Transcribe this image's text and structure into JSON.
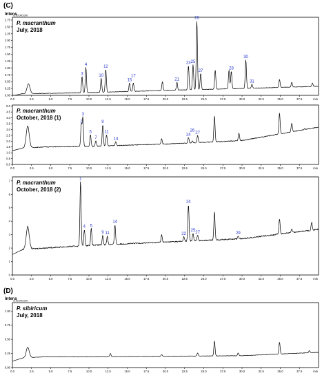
{
  "sections": [
    {
      "label": "(C)",
      "axis_title": "Intens"
    },
    {
      "label": "(D)",
      "axis_title": "Intens"
    }
  ],
  "chart_data": [
    {
      "type": "line",
      "section": "(C)",
      "species": "P. macranthum",
      "collection": "July, 2018",
      "scale_note": "x100,000,000",
      "xlim": [
        0,
        40
      ],
      "ylim": [
        0,
        2.85
      ],
      "x_ticks": [
        "0.0",
        "2.5",
        "5.0",
        "7.5",
        "10.0",
        "12.5",
        "15.0",
        "17.5",
        "20.0",
        "22.5",
        "25.0",
        "27.5",
        "30.0",
        "32.5",
        "35.0",
        "37.5",
        "min"
      ],
      "y_ticks": [
        "0.00",
        "0.25",
        "0.50",
        "0.75",
        "1.00",
        "1.25",
        "1.50",
        "1.75",
        "2.00",
        "2.25",
        "2.50",
        "2.75"
      ],
      "baseline": {
        "x": [
          0,
          10,
          20,
          30,
          40
        ],
        "y": [
          0.05,
          0.1,
          0.18,
          0.25,
          0.33
        ]
      },
      "peaks": [
        {
          "x": 2.1,
          "y": 0.42,
          "label": ""
        },
        {
          "x": 9.1,
          "y": 0.68,
          "label": "3"
        },
        {
          "x": 9.6,
          "y": 1.02,
          "label": "4"
        },
        {
          "x": 11.6,
          "y": 0.62,
          "label": "10"
        },
        {
          "x": 12.2,
          "y": 0.95,
          "label": "12"
        },
        {
          "x": 15.3,
          "y": 0.45,
          "label": "15"
        },
        {
          "x": 15.8,
          "y": 0.45,
          "label": "17"
        },
        {
          "x": 19.6,
          "y": 0.5,
          "label": ""
        },
        {
          "x": 21.5,
          "y": 0.48,
          "label": "21"
        },
        {
          "x": 23.0,
          "y": 1.08,
          "label": "23"
        },
        {
          "x": 23.6,
          "y": 1.12,
          "label": "25"
        },
        {
          "x": 24.1,
          "y": 2.72,
          "label": "26"
        },
        {
          "x": 24.6,
          "y": 0.8,
          "label": "27"
        },
        {
          "x": 26.5,
          "y": 0.92,
          "label": ""
        },
        {
          "x": 28.6,
          "y": 0.88,
          "label": "28"
        },
        {
          "x": 28.3,
          "y": 0.92,
          "label": ""
        },
        {
          "x": 30.5,
          "y": 1.3,
          "label": "30"
        },
        {
          "x": 31.3,
          "y": 0.4,
          "label": "31"
        },
        {
          "x": 34.9,
          "y": 0.58,
          "label": ""
        },
        {
          "x": 36.5,
          "y": 0.48,
          "label": ""
        },
        {
          "x": 39.2,
          "y": 0.45,
          "label": ""
        }
      ]
    },
    {
      "type": "line",
      "section": "(C)",
      "species": "P. macranthum",
      "collection": "October, 2018 (1)",
      "scale_note": "",
      "xlim": [
        0,
        40
      ],
      "ylim": [
        0,
        5.1
      ],
      "x_ticks": [
        "0.0",
        "2.5",
        "5.0",
        "7.5",
        "10.0",
        "12.5",
        "15.0",
        "17.5",
        "20.0",
        "22.5",
        "25.0",
        "27.5",
        "30.0",
        "32.5",
        "35.0",
        "37.5",
        "min"
      ],
      "y_ticks": [
        "0.0",
        "0.5",
        "1.0",
        "1.5",
        "2.0",
        "2.5",
        "3.0",
        "3.5",
        "4.0",
        "4.5",
        "5.0"
      ],
      "baseline": {
        "x": [
          0,
          1.5,
          4.0,
          10,
          20,
          30,
          40
        ],
        "y": [
          1.3,
          1.4,
          1.5,
          1.55,
          1.75,
          2.05,
          3.2
        ]
      },
      "peaks": [
        {
          "x": 2.0,
          "y": 3.3,
          "label": ""
        },
        {
          "x": 9.0,
          "y": 3.45,
          "label": "1"
        },
        {
          "x": 9.2,
          "y": 4.05,
          "label": "3"
        },
        {
          "x": 10.2,
          "y": 2.55,
          "label": "5"
        },
        {
          "x": 10.9,
          "y": 2.05,
          "label": "7"
        },
        {
          "x": 11.8,
          "y": 3.4,
          "label": "9"
        },
        {
          "x": 12.3,
          "y": 2.55,
          "label": "11"
        },
        {
          "x": 13.5,
          "y": 1.95,
          "label": "14"
        },
        {
          "x": 19.5,
          "y": 2.2,
          "label": ""
        },
        {
          "x": 23.0,
          "y": 2.3,
          "label": "24"
        },
        {
          "x": 23.5,
          "y": 2.0,
          "label": "26"
        },
        {
          "x": 24.2,
          "y": 2.5,
          "label": "27"
        },
        {
          "x": 26.4,
          "y": 4.15,
          "label": ""
        },
        {
          "x": 29.6,
          "y": 2.7,
          "label": ""
        },
        {
          "x": 34.9,
          "y": 4.4,
          "label": ""
        },
        {
          "x": 36.5,
          "y": 3.55,
          "label": ""
        },
        {
          "x": 38.2,
          "y": 3.05,
          "label": ""
        }
      ]
    },
    {
      "type": "line",
      "section": "(C)",
      "species": "P. macranthum",
      "collection": "October, 2018 (2)",
      "scale_note": "",
      "xlim": [
        0,
        40
      ],
      "ylim": [
        0,
        7.3
      ],
      "x_ticks": [
        "0.0",
        "2.5",
        "5.0",
        "7.5",
        "10.0",
        "12.5",
        "15.0",
        "17.5",
        "20.0",
        "22.5",
        "25.0",
        "27.5",
        "30.0",
        "32.5",
        "35.0",
        "37.5",
        "min"
      ],
      "y_ticks": [
        "0",
        "1",
        "2",
        "3",
        "4",
        "5",
        "6",
        "7"
      ],
      "baseline": {
        "x": [
          0,
          1.5,
          4,
          10,
          20,
          30,
          40
        ],
        "y": [
          1.7,
          1.9,
          2.0,
          2.2,
          2.45,
          2.7,
          3.4
        ]
      },
      "peaks": [
        {
          "x": 2.0,
          "y": 3.6,
          "label": ""
        },
        {
          "x": 8.9,
          "y": 6.95,
          "label": "1"
        },
        {
          "x": 9.4,
          "y": 3.4,
          "label": "4"
        },
        {
          "x": 10.3,
          "y": 3.45,
          "label": "5"
        },
        {
          "x": 11.8,
          "y": 2.95,
          "label": "9"
        },
        {
          "x": 12.4,
          "y": 2.9,
          "label": "11"
        },
        {
          "x": 13.4,
          "y": 3.75,
          "label": "14"
        },
        {
          "x": 19.5,
          "y": 3.0,
          "label": ""
        },
        {
          "x": 22.4,
          "y": 2.85,
          "label": "22"
        },
        {
          "x": 23.0,
          "y": 5.25,
          "label": "24"
        },
        {
          "x": 23.6,
          "y": 3.1,
          "label": "25"
        },
        {
          "x": 24.2,
          "y": 2.95,
          "label": "27"
        },
        {
          "x": 26.4,
          "y": 4.65,
          "label": ""
        },
        {
          "x": 29.5,
          "y": 2.9,
          "label": "29"
        },
        {
          "x": 34.9,
          "y": 4.2,
          "label": ""
        },
        {
          "x": 36.5,
          "y": 3.4,
          "label": ""
        },
        {
          "x": 39.1,
          "y": 3.9,
          "label": ""
        }
      ]
    },
    {
      "type": "line",
      "section": "(D)",
      "species": "P. sibiricum",
      "collection": "July, 2018",
      "scale_note": "x100,000,000",
      "xlim": [
        0,
        40
      ],
      "ylim": [
        0,
        1.15
      ],
      "x_ticks": [
        "0.0",
        "2.5",
        "5.0",
        "7.5",
        "10.0",
        "12.5",
        "15.0",
        "17.5",
        "20.0",
        "22.5",
        "25.0",
        "27.5",
        "30.0",
        "32.5",
        "35.0",
        "37.5",
        "min"
      ],
      "y_ticks": [
        "0.00",
        "0.25",
        "0.50",
        "0.75",
        "1.00"
      ],
      "baseline": {
        "x": [
          0,
          1.5,
          4,
          10,
          20,
          30,
          40
        ],
        "y": [
          0.14,
          0.17,
          0.19,
          0.19,
          0.2,
          0.21,
          0.27
        ]
      },
      "peaks": [
        {
          "x": 2.0,
          "y": 0.36,
          "label": ""
        },
        {
          "x": 12.8,
          "y": 0.25,
          "label": ""
        },
        {
          "x": 19.5,
          "y": 0.23,
          "label": ""
        },
        {
          "x": 24.2,
          "y": 0.26,
          "label": ""
        },
        {
          "x": 26.4,
          "y": 0.47,
          "label": ""
        },
        {
          "x": 29.5,
          "y": 0.26,
          "label": ""
        },
        {
          "x": 34.9,
          "y": 0.45,
          "label": ""
        },
        {
          "x": 38.8,
          "y": 0.3,
          "label": ""
        }
      ]
    }
  ]
}
